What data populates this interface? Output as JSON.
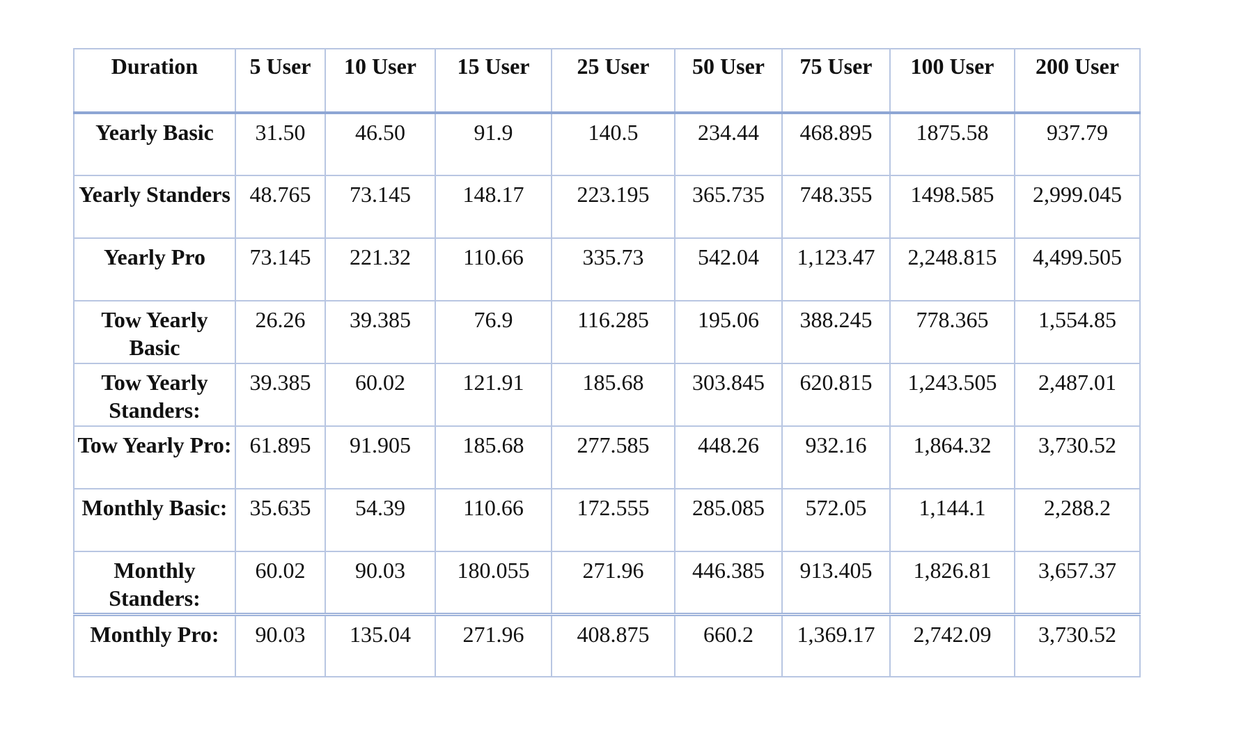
{
  "table": {
    "headers": [
      "Duration",
      "5 User",
      "10 User",
      "15 User",
      "25 User",
      "50 User",
      "75 User",
      "100 User",
      "200 User"
    ],
    "rows": [
      {
        "label": "Yearly Basic",
        "values": [
          "31.50",
          "46.50",
          "91.9",
          "140.5",
          "234.44",
          "468.895",
          "1875.58",
          "937.79"
        ]
      },
      {
        "label": "Yearly Standers",
        "values": [
          "48.765",
          "73.145",
          "148.17",
          "223.195",
          "365.735",
          "748.355",
          "1498.585",
          "2,999.045"
        ]
      },
      {
        "label": "Yearly Pro",
        "values": [
          "73.145",
          "221.32",
          "110.66",
          "335.73",
          "542.04",
          "1,123.47",
          "2,248.815",
          "4,499.505"
        ]
      },
      {
        "label": "Tow Yearly Basic",
        "values": [
          "26.26",
          "39.385",
          "76.9",
          "116.285",
          "195.06",
          "388.245",
          "778.365",
          "1,554.85"
        ]
      },
      {
        "label": "Tow Yearly Standers:",
        "values": [
          "39.385",
          "60.02",
          "121.91",
          "185.68",
          "303.845",
          "620.815",
          "1,243.505",
          "2,487.01"
        ]
      },
      {
        "label": "Tow Yearly Pro:",
        "values": [
          "61.895",
          "91.905",
          "185.68",
          "277.585",
          "448.26",
          "932.16",
          "1,864.32",
          "3,730.52"
        ]
      },
      {
        "label": "Monthly Basic:",
        "values": [
          "35.635",
          "54.39",
          "110.66",
          "172.555",
          "285.085",
          "572.05",
          "1,144.1",
          "2,288.2"
        ]
      },
      {
        "label": "Monthly Standers:",
        "values": [
          "60.02",
          "90.03",
          "180.055",
          "271.96",
          "446.385",
          "913.405",
          "1,826.81",
          "3,657.37"
        ]
      },
      {
        "label": "Monthly Pro:",
        "values": [
          "90.03",
          "135.04",
          "271.96",
          "408.875",
          "660.2",
          "1,369.17",
          "2,742.09",
          "3,730.52"
        ]
      }
    ]
  }
}
